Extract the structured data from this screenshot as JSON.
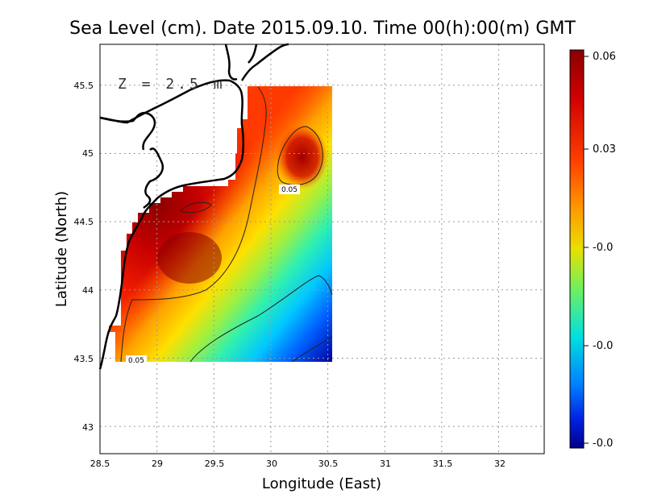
{
  "chart_data": {
    "type": "heatmap",
    "title": "Sea Level (cm). Date 2015.09.10. Time 00(h):00(m) GMT",
    "xlabel": "Longitude (East)",
    "ylabel": "Latitude (North)",
    "annotation": "Z = 2.5 m",
    "xlim": [
      28.5,
      32.4
    ],
    "ylim": [
      42.8,
      45.8
    ],
    "x_ticks": [
      "28.5",
      "29",
      "29.5",
      "30",
      "30.5",
      "31",
      "31.5",
      "32"
    ],
    "y_ticks": [
      "43",
      "43.5",
      "44",
      "44.5",
      "45",
      "45.5"
    ],
    "grid": true,
    "field_extent": {
      "lon": [
        28.6,
        30.55
      ],
      "lat": [
        43.5,
        45.5
      ]
    },
    "colorbar": {
      "ticks": [
        "0.06",
        "0.03",
        "-0.0",
        "-0.0",
        "-0.0"
      ],
      "colors": [
        "#8b0000",
        "#ff2200",
        "#ffaa00",
        "#d0ee20",
        "#30f0a0",
        "#00c8ff",
        "#0060ff",
        "#00008b"
      ]
    },
    "contours": [
      {
        "level": "0.05",
        "label_at": {
          "lon": 30.05,
          "lat": 44.73
        }
      },
      {
        "level": "0.05",
        "label_at": {
          "lon": 28.8,
          "lat": 43.5
        }
      }
    ]
  }
}
